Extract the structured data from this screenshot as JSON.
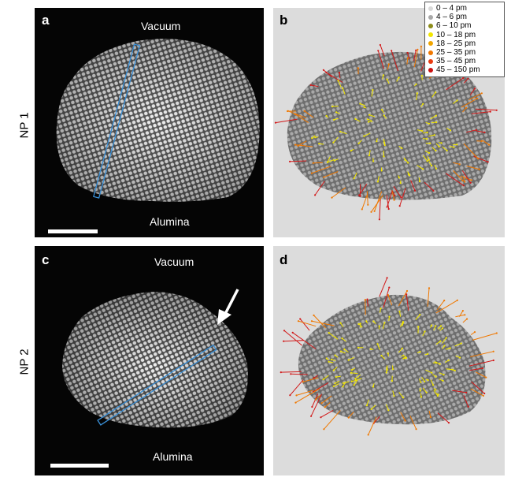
{
  "row_labels": {
    "np1": "NP 1",
    "np2": "NP 2"
  },
  "panels": {
    "a": {
      "letter": "a",
      "top_label": "Vacuum",
      "bottom_label": "Alumina"
    },
    "b": {
      "letter": "b"
    },
    "c": {
      "letter": "c",
      "top_label": "Vacuum",
      "bottom_label": "Alumina"
    },
    "d": {
      "letter": "d"
    }
  },
  "legend": {
    "items": [
      {
        "label": "0 – 4 pm",
        "color": "#d9d9d9"
      },
      {
        "label": "4 – 6 pm",
        "color": "#a8a8a8"
      },
      {
        "label": "6 – 10 pm",
        "color": "#8c8c1a"
      },
      {
        "label": "10 – 18 pm",
        "color": "#f2e600"
      },
      {
        "label": "18 – 25 pm",
        "color": "#f0a500"
      },
      {
        "label": "25 – 35 pm",
        "color": "#f07800"
      },
      {
        "label": "35 – 45 pm",
        "color": "#e83a10"
      },
      {
        "label": "45 – 150 pm",
        "color": "#cc1010"
      }
    ]
  },
  "colors": {
    "roi_box": "#3a8fd6",
    "vector_yellow": "#f2e600",
    "vector_orange": "#f07800",
    "vector_red": "#d21818"
  }
}
